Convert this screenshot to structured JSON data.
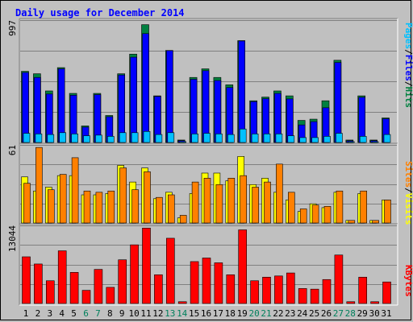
{
  "chart_data": [
    {
      "type": "bar",
      "title": "Daily usage for December 2014",
      "ymax_label": "997",
      "ylim": [
        0,
        997
      ],
      "categories": [
        "1",
        "2",
        "3",
        "4",
        "5",
        "6",
        "7",
        "8",
        "9",
        "10",
        "11",
        "12",
        "13",
        "14",
        "15",
        "16",
        "17",
        "18",
        "19",
        "20",
        "21",
        "22",
        "23",
        "24",
        "25",
        "26",
        "27",
        "28",
        "29",
        "30",
        "31"
      ],
      "weekend_days": [
        "6",
        "7",
        "13",
        "14",
        "20",
        "21",
        "27",
        "28"
      ],
      "series": [
        {
          "name": "Hits",
          "color": "#008040",
          "values": [
            580,
            560,
            420,
            610,
            400,
            135,
            400,
            220,
            560,
            720,
            960,
            380,
            750,
            20,
            530,
            600,
            530,
            470,
            830,
            340,
            370,
            420,
            380,
            180,
            190,
            340,
            670,
            20,
            380,
            20,
            200
          ]
        },
        {
          "name": "Files",
          "color": "#0000ff",
          "values": [
            570,
            530,
            395,
            600,
            385,
            125,
            390,
            210,
            550,
            695,
            887,
            375,
            748,
            15,
            515,
            585,
            505,
            448,
            827,
            333,
            357,
            400,
            355,
            143,
            170,
            283,
            652,
            14,
            368,
            15,
            193
          ]
        },
        {
          "name": "Pages",
          "color": "#00c0ff",
          "values": [
            75,
            70,
            65,
            80,
            70,
            55,
            60,
            50,
            80,
            80,
            90,
            65,
            80,
            5,
            70,
            75,
            70,
            65,
            110,
            70,
            70,
            70,
            55,
            40,
            40,
            50,
            75,
            5,
            50,
            5,
            65
          ]
        }
      ],
      "legend": [
        "Pages",
        "Files",
        "Hits"
      ]
    },
    {
      "type": "bar",
      "ymax_label": "61",
      "ylim": [
        0,
        61
      ],
      "series": [
        {
          "name": "Visits",
          "color": "#ffff00",
          "values": [
            36,
            25,
            28,
            37,
            37,
            22,
            22,
            23,
            45,
            32,
            43,
            19,
            24,
            4,
            23,
            39,
            39,
            33,
            52,
            30,
            35,
            24,
            18,
            9,
            15,
            12,
            24,
            2,
            23,
            2,
            18
          ]
        },
        {
          "name": "Sites",
          "color": "#ff8000",
          "values": [
            31,
            59,
            26,
            38,
            51,
            25,
            24,
            25,
            43,
            26,
            40,
            20,
            22,
            6,
            32,
            35,
            30,
            35,
            37,
            28,
            32,
            46,
            24,
            11,
            14,
            13,
            25,
            2,
            25,
            2,
            18
          ]
        }
      ],
      "legend": [
        "Sites",
        "/",
        "Visits"
      ]
    },
    {
      "type": "bar",
      "ymax_label": "13044",
      "ylim": [
        0,
        13044
      ],
      "series": [
        {
          "name": "KBytes",
          "color": "#ff0000",
          "values": [
            7800,
            6600,
            3800,
            8800,
            5200,
            2200,
            5700,
            2700,
            7300,
            9800,
            12600,
            4800,
            10900,
            300,
            7000,
            7600,
            6800,
            4800,
            12300,
            3800,
            4400,
            4600,
            5100,
            2500,
            2400,
            4000,
            8100,
            300,
            4400,
            300,
            3600
          ]
        }
      ],
      "legend": [
        "KBytes"
      ]
    }
  ],
  "colors": {
    "background": "#c0c0c0",
    "grid": "#808080",
    "weekday_label": "#000000",
    "weekend_label": "#00805c",
    "title": "#0000ff",
    "legend_separator": "#000000"
  }
}
